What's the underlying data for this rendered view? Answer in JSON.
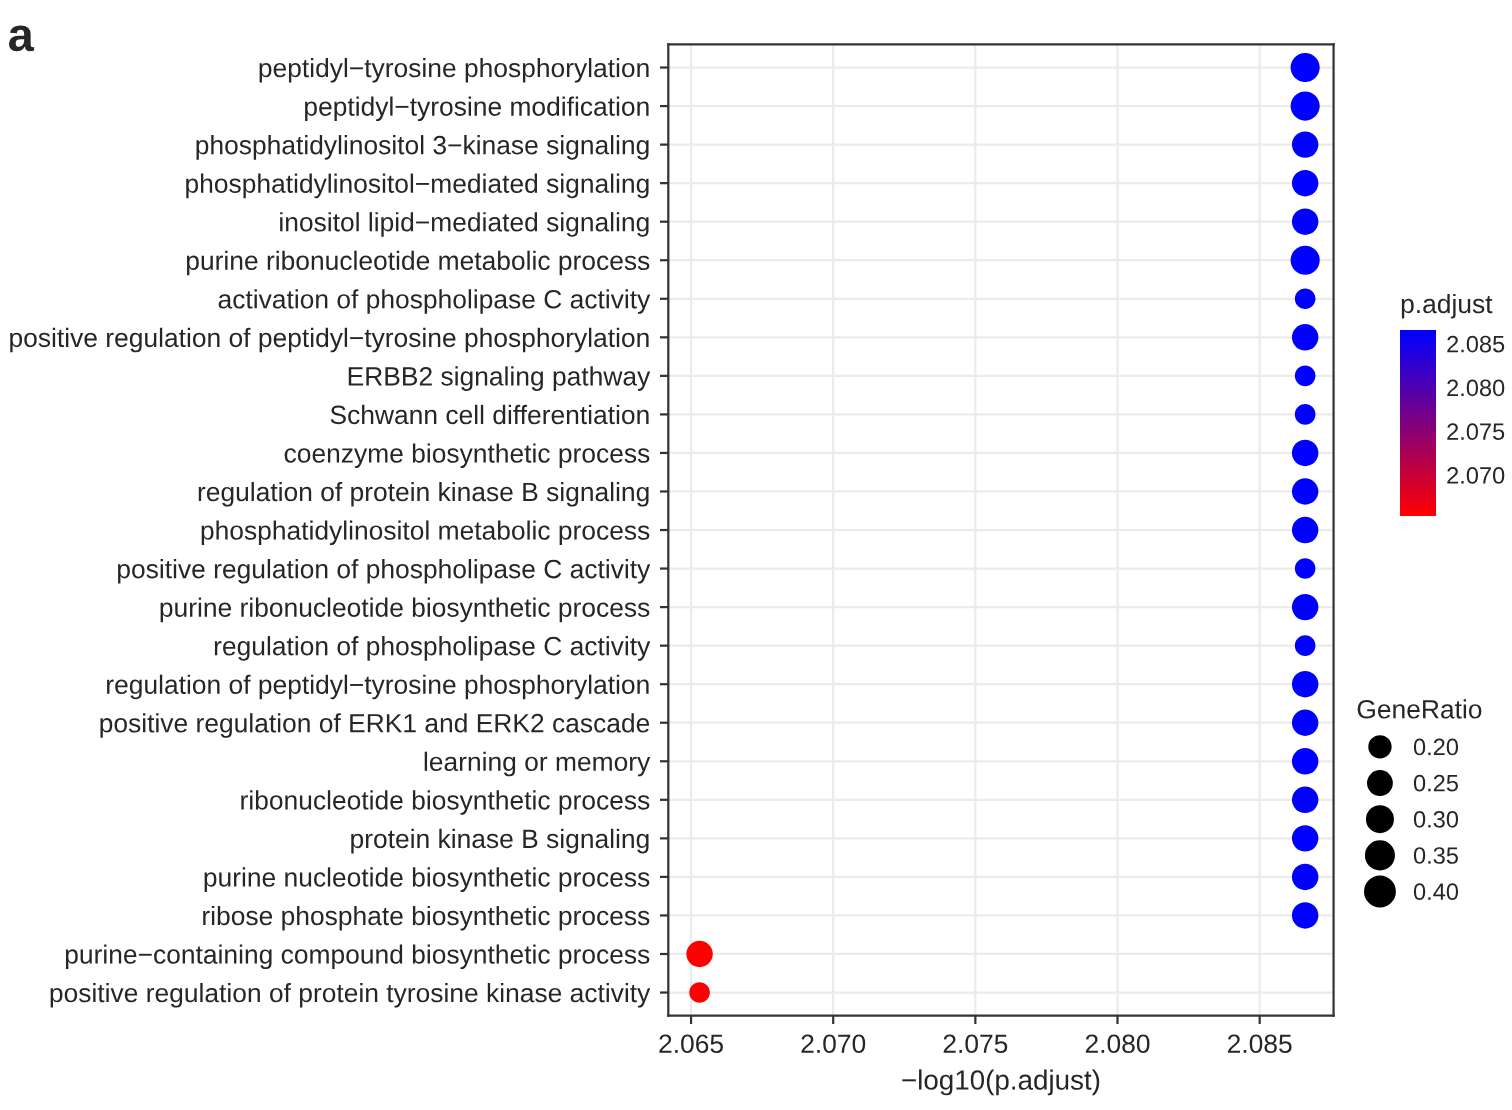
{
  "chart_data": {
    "type": "scatter",
    "title": "a",
    "xlabel": "−log10(p.adjust)",
    "clabel": "p.adjust",
    "legend_title": "GeneRatio",
    "orientation": "horizontal",
    "categories": [
      "peptidyl−tyrosine phosphorylation",
      "peptidyl−tyrosine modification",
      "phosphatidylinositol 3−kinase signaling",
      "phosphatidylinositol−mediated signaling",
      "inositol lipid−mediated signaling",
      "purine ribonucleotide metabolic process",
      "activation of phospholipase C activity",
      "positive regulation of peptidyl−tyrosine phosphorylation",
      "ERBB2 signaling pathway",
      "Schwann cell differentiation",
      "coenzyme biosynthetic process",
      "regulation of protein kinase B signaling",
      "phosphatidylinositol metabolic process",
      "positive regulation of phospholipase C activity",
      "purine ribonucleotide biosynthetic process",
      "regulation of phospholipase C activity",
      "regulation of peptidyl−tyrosine phosphorylation",
      "positive regulation of ERK1 and ERK2 cascade",
      "learning or memory",
      "ribonucleotide biosynthetic process",
      "protein kinase B signaling",
      "purine nucleotide biosynthetic process",
      "ribose phosphate biosynthetic process",
      "purine−containing compound biosynthetic process",
      "positive regulation of protein tyrosine kinase activity"
    ],
    "values": [
      2.0866,
      2.0866,
      2.0866,
      2.0866,
      2.0866,
      2.0866,
      2.0866,
      2.0866,
      2.0866,
      2.0866,
      2.0866,
      2.0866,
      2.0866,
      2.0866,
      2.0866,
      2.0866,
      2.0866,
      2.0866,
      2.0866,
      2.0866,
      2.0866,
      2.0866,
      2.0866,
      2.0653,
      2.0653
    ],
    "cvalues": [
      2.0866,
      2.0866,
      2.0866,
      2.0866,
      2.0866,
      2.0866,
      2.0866,
      2.0866,
      2.0866,
      2.0866,
      2.0866,
      2.0866,
      2.0866,
      2.0866,
      2.0866,
      2.0866,
      2.0866,
      2.0866,
      2.0866,
      2.0866,
      2.0866,
      2.0866,
      2.0866,
      2.0653,
      2.0653
    ],
    "sizes": [
      0.4,
      0.4,
      0.33,
      0.33,
      0.33,
      0.4,
      0.2,
      0.33,
      0.2,
      0.2,
      0.33,
      0.33,
      0.33,
      0.2,
      0.33,
      0.2,
      0.33,
      0.33,
      0.33,
      0.33,
      0.33,
      0.33,
      0.33,
      0.33,
      0.2
    ],
    "size_legend": [
      {
        "value": 0.2,
        "label": "0.20"
      },
      {
        "value": 0.25,
        "label": "0.25"
      },
      {
        "value": 0.3,
        "label": "0.30"
      },
      {
        "value": 0.35,
        "label": "0.35"
      },
      {
        "value": 0.4,
        "label": "0.40"
      }
    ],
    "clim": [
      2.0653,
      2.0866
    ],
    "cticks": [
      {
        "value": 2.07,
        "label": "2.070"
      },
      {
        "value": 2.075,
        "label": "2.075"
      },
      {
        "value": 2.08,
        "label": "2.080"
      },
      {
        "value": 2.085,
        "label": "2.085"
      }
    ],
    "xlim": [
      2.0642,
      2.0876
    ],
    "xticks": [
      {
        "value": 2.065,
        "label": "2.065"
      },
      {
        "value": 2.07,
        "label": "2.070"
      },
      {
        "value": 2.075,
        "label": "2.075"
      },
      {
        "value": 2.08,
        "label": "2.080"
      },
      {
        "value": 2.085,
        "label": "2.085"
      }
    ],
    "grid": true,
    "marker": "circle"
  }
}
